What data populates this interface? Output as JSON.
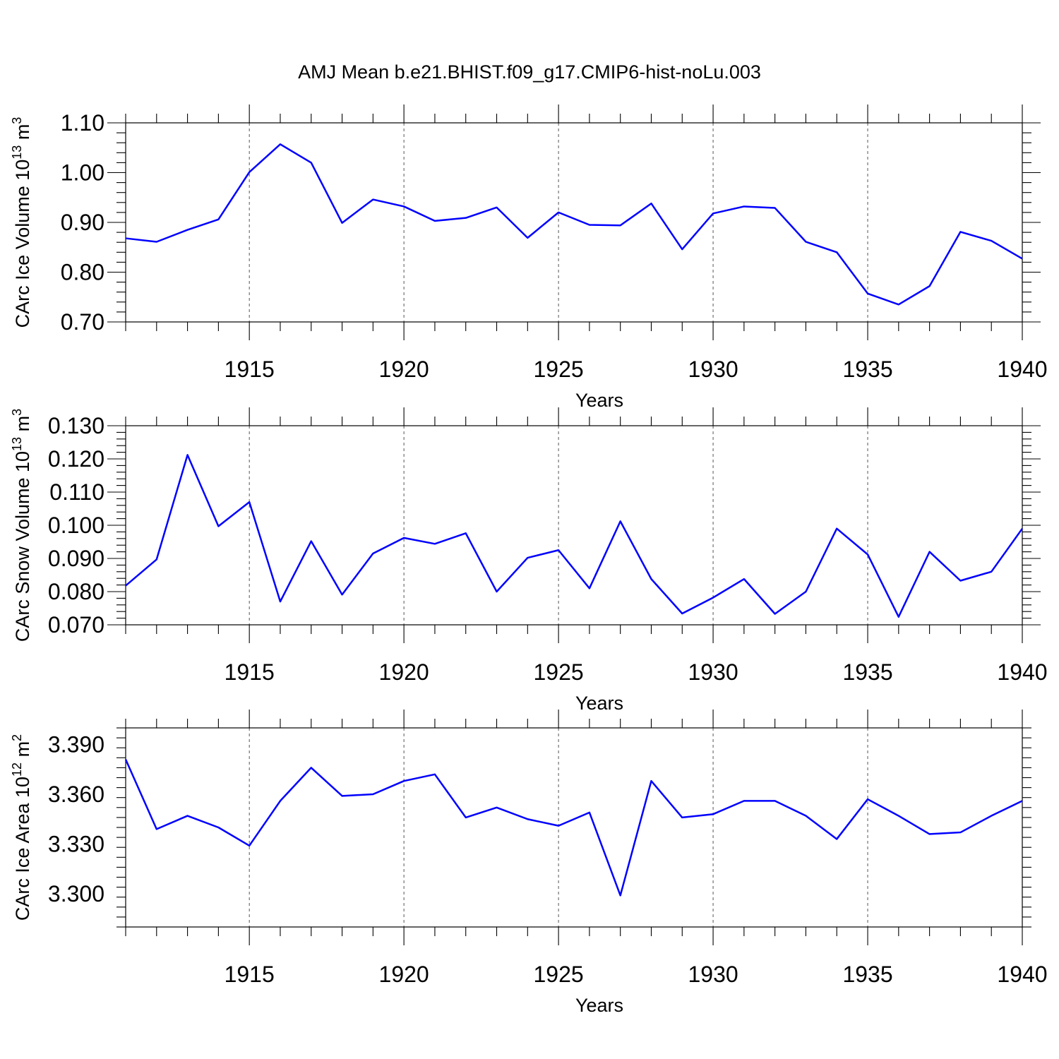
{
  "title": "AMJ Mean b.e21.BHIST.f09_g17.CMIP6-hist-noLu.003",
  "colors": {
    "series": "#0000ff",
    "axis": "#000000",
    "grid": "#555555"
  },
  "chart_data": [
    {
      "type": "line",
      "ylabel": {
        "base": "CArc Ice Volume 10",
        "exponent": "13",
        "unit": " m",
        "unit_exponent": "3"
      },
      "xlabel": "Years",
      "xlim": [
        1911,
        1940
      ],
      "ylim": [
        0.7,
        1.1
      ],
      "xticks": [
        1915,
        1920,
        1925,
        1930,
        1935,
        1940
      ],
      "yticks": [
        "0.70",
        "0.80",
        "0.90",
        "1.00",
        "1.10"
      ],
      "grid": "dashed vertical at major x ticks",
      "x": [
        1911,
        1912,
        1913,
        1914,
        1915,
        1916,
        1917,
        1918,
        1919,
        1920,
        1921,
        1922,
        1923,
        1924,
        1925,
        1926,
        1927,
        1928,
        1929,
        1930,
        1931,
        1932,
        1933,
        1934,
        1935,
        1936,
        1937,
        1938,
        1939,
        1940
      ],
      "series": [
        {
          "values": [
            0.868,
            0.861,
            0.885,
            0.906,
            1.001,
            1.057,
            1.02,
            0.899,
            0.946,
            0.932,
            0.903,
            0.909,
            0.93,
            0.869,
            0.92,
            0.895,
            0.894,
            0.938,
            0.846,
            0.918,
            0.932,
            0.929,
            0.861,
            0.84,
            0.757,
            0.735,
            0.772,
            0.881,
            0.863,
            0.827
          ]
        }
      ]
    },
    {
      "type": "line",
      "ylabel": {
        "base": "CArc Snow Volume 10",
        "exponent": "13",
        "unit": " m",
        "unit_exponent": "3"
      },
      "xlabel": "Years",
      "xlim": [
        1911,
        1940
      ],
      "ylim": [
        0.07,
        0.13
      ],
      "xticks": [
        1915,
        1920,
        1925,
        1930,
        1935,
        1940
      ],
      "yticks": [
        "0.070",
        "0.080",
        "0.090",
        "0.100",
        "0.110",
        "0.120",
        "0.130"
      ],
      "grid": "dashed vertical at major x ticks",
      "x": [
        1911,
        1912,
        1913,
        1914,
        1915,
        1916,
        1917,
        1918,
        1919,
        1920,
        1921,
        1922,
        1923,
        1924,
        1925,
        1926,
        1927,
        1928,
        1929,
        1930,
        1931,
        1932,
        1933,
        1934,
        1935,
        1936,
        1937,
        1938,
        1939,
        1940
      ],
      "series": [
        {
          "values": [
            0.0818,
            0.0897,
            0.1212,
            0.0997,
            0.107,
            0.077,
            0.0952,
            0.0791,
            0.0915,
            0.0962,
            0.0944,
            0.0976,
            0.08,
            0.0902,
            0.0925,
            0.081,
            0.1012,
            0.0838,
            0.0734,
            0.0782,
            0.0838,
            0.0733,
            0.08,
            0.099,
            0.0912,
            0.0724,
            0.092,
            0.0833,
            0.086,
            0.099
          ]
        }
      ]
    },
    {
      "type": "line",
      "ylabel": {
        "base": "CArc Ice Area 10",
        "exponent": "12",
        "unit": " m",
        "unit_exponent": "2"
      },
      "xlabel": "Years",
      "xlim": [
        1911,
        1940
      ],
      "ylim": [
        3.28,
        3.4
      ],
      "xticks": [
        1915,
        1920,
        1925,
        1930,
        1935,
        1940
      ],
      "yticks": [
        "3.300",
        "3.330",
        "3.360",
        "3.390"
      ],
      "grid": "dashed vertical at major x ticks",
      "x": [
        1911,
        1912,
        1913,
        1914,
        1915,
        1916,
        1917,
        1918,
        1919,
        1920,
        1921,
        1922,
        1923,
        1924,
        1925,
        1926,
        1927,
        1928,
        1929,
        1930,
        1931,
        1932,
        1933,
        1934,
        1935,
        1936,
        1937,
        1938,
        1939,
        1940
      ],
      "series": [
        {
          "values": [
            3.381,
            3.339,
            3.347,
            3.34,
            3.329,
            3.356,
            3.376,
            3.359,
            3.36,
            3.368,
            3.372,
            3.346,
            3.352,
            3.345,
            3.341,
            3.349,
            3.299,
            3.368,
            3.346,
            3.348,
            3.356,
            3.356,
            3.347,
            3.333,
            3.357,
            3.347,
            3.336,
            3.337,
            3.347,
            3.356
          ]
        }
      ]
    }
  ]
}
